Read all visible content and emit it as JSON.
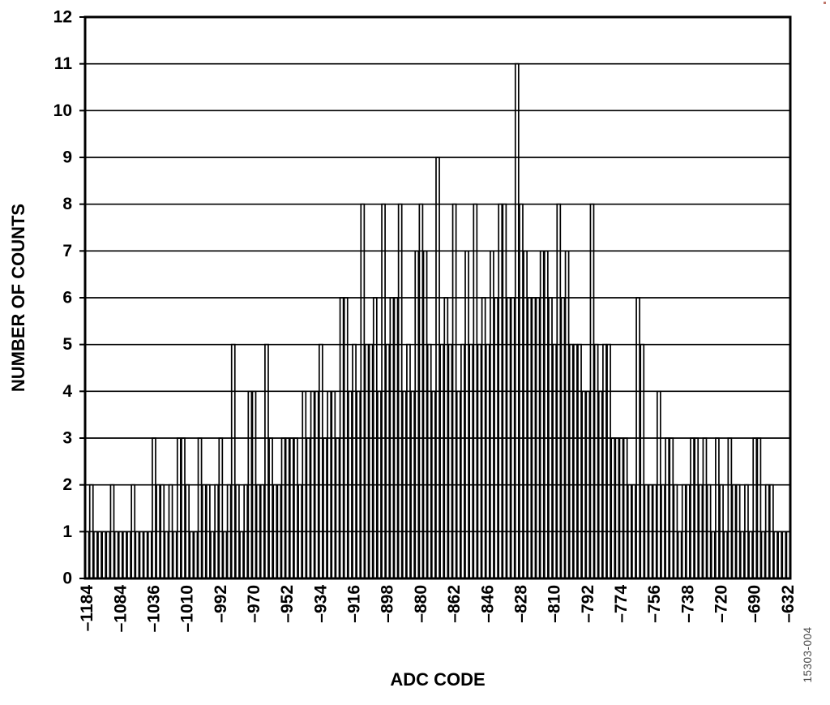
{
  "figure": {
    "figure_number": "15303-004",
    "background_color": "#ffffff",
    "axis_color": "#000000",
    "bar_stroke_color": "#000000",
    "figure_number_color": "#4d4d4d",
    "artifact_dot_color": "#c0776b"
  },
  "chart_data": {
    "type": "bar",
    "subtype": "adc-code-noise-histogram",
    "title": "",
    "xlabel": "ADC CODE",
    "ylabel": "NUMBER OF COUNTS",
    "ylim": [
      0,
      12
    ],
    "yticks": [
      0,
      1,
      2,
      3,
      4,
      5,
      6,
      7,
      8,
      9,
      10,
      11,
      12
    ],
    "grid": "horizontal gridline at every integer count",
    "legend": "none",
    "bar_fill": "none (outlined white bars, gridlines visible through bars)",
    "x_tick_label_rotation_deg": -90,
    "x_tick_every_n_bars": 8,
    "x_tick_labels": [
      "–1184",
      "–1084",
      "–1036",
      "–1010",
      "–992",
      "–970",
      "–952",
      "–934",
      "–916",
      "–898",
      "–880",
      "–862",
      "–846",
      "–828",
      "–810",
      "–792",
      "–774",
      "–756",
      "–738",
      "–720",
      "–690",
      "–632"
    ],
    "num_bars": 169,
    "values": [
      1,
      2,
      1,
      1,
      1,
      1,
      2,
      1,
      1,
      1,
      1,
      2,
      1,
      1,
      1,
      1,
      3,
      2,
      2,
      1,
      2,
      1,
      3,
      3,
      2,
      1,
      1,
      3,
      2,
      2,
      1,
      2,
      3,
      1,
      2,
      5,
      2,
      1,
      2,
      4,
      4,
      2,
      2,
      5,
      3,
      2,
      2,
      3,
      3,
      3,
      3,
      2,
      4,
      3,
      4,
      4,
      5,
      3,
      4,
      4,
      3,
      6,
      6,
      4,
      5,
      4,
      8,
      5,
      5,
      6,
      4,
      8,
      5,
      6,
      6,
      8,
      4,
      5,
      4,
      7,
      8,
      7,
      5,
      4,
      9,
      5,
      6,
      5,
      8,
      4,
      5,
      7,
      5,
      8,
      5,
      6,
      5,
      7,
      6,
      8,
      8,
      6,
      6,
      11,
      8,
      7,
      6,
      6,
      6,
      7,
      7,
      6,
      5,
      8,
      6,
      7,
      5,
      5,
      5,
      4,
      4,
      8,
      5,
      4,
      5,
      5,
      3,
      3,
      3,
      3,
      2,
      2,
      6,
      5,
      2,
      2,
      2,
      4,
      2,
      3,
      3,
      2,
      1,
      2,
      2,
      3,
      3,
      2,
      3,
      2,
      1,
      3,
      2,
      1,
      3,
      2,
      2,
      1,
      2,
      1,
      3,
      3,
      1,
      2,
      2,
      1,
      1,
      1,
      1
    ],
    "peak_count": 11,
    "peak_near_code": -828,
    "labeled_bar_counts": {
      "–1184": 1,
      "–1084": 1,
      "–1036": 3,
      "–1010": 2,
      "–992": 3,
      "–970": 4,
      "–952": 3,
      "–934": 5,
      "–916": 5,
      "–898": 5,
      "–880": 8,
      "–862": 8,
      "–846": 5,
      "–828": 8,
      "–810": 5,
      "–792": 4,
      "–774": 3,
      "–756": 2,
      "–738": 2,
      "–720": 2,
      "–690": 3,
      "–632": 1
    }
  }
}
